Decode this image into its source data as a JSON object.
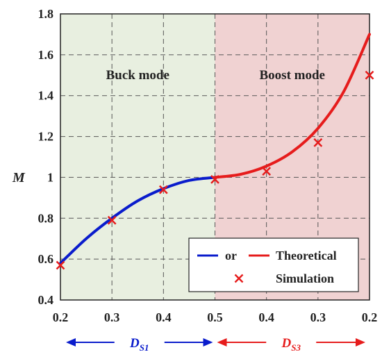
{
  "chart_data": {
    "type": "line",
    "ylabel": "M",
    "ylim": [
      0.4,
      1.8
    ],
    "yticks": [
      "0.4",
      "0.6",
      "0.8",
      "1",
      "1.2",
      "1.4",
      "1.6",
      "1.8"
    ],
    "xticks": [
      "0.2",
      "0.3",
      "0.4",
      "0.5",
      "0.4",
      "0.3",
      "0.2"
    ],
    "grid": true,
    "regions": [
      {
        "label": "Buck mode",
        "color": "#e8efe0",
        "x_range": [
          0,
          3
        ]
      },
      {
        "label": "Boost mode",
        "color": "#f0d2d2",
        "x_range": [
          3,
          6
        ]
      }
    ],
    "series": [
      {
        "name": "or",
        "color": "#0a1ccc",
        "x": [
          0,
          0.5,
          1,
          1.5,
          2,
          2.5,
          3
        ],
        "values": [
          0.58,
          0.7,
          0.8,
          0.885,
          0.945,
          0.985,
          1.0
        ]
      },
      {
        "name": "Theoretical",
        "color": "#e61c1c",
        "x": [
          3,
          3.5,
          4,
          4.5,
          5,
          5.5,
          6
        ],
        "values": [
          1.0,
          1.015,
          1.055,
          1.125,
          1.24,
          1.42,
          1.7
        ]
      },
      {
        "name": "Simulation",
        "color": "#e61c1c",
        "marker": "x",
        "x": [
          0,
          1,
          2,
          3,
          4,
          5,
          6
        ],
        "values": [
          0.57,
          0.79,
          0.94,
          0.99,
          1.03,
          1.17,
          1.5
        ]
      }
    ],
    "legend": {
      "position": "bottom-right",
      "entries": [
        "or",
        "Theoretical",
        "Simulation"
      ]
    },
    "bottom_arrows": [
      {
        "label": "D",
        "sub": "S1",
        "color": "#0a1ccc"
      },
      {
        "label": "D",
        "sub": "S3",
        "color": "#e61c1c"
      }
    ]
  }
}
